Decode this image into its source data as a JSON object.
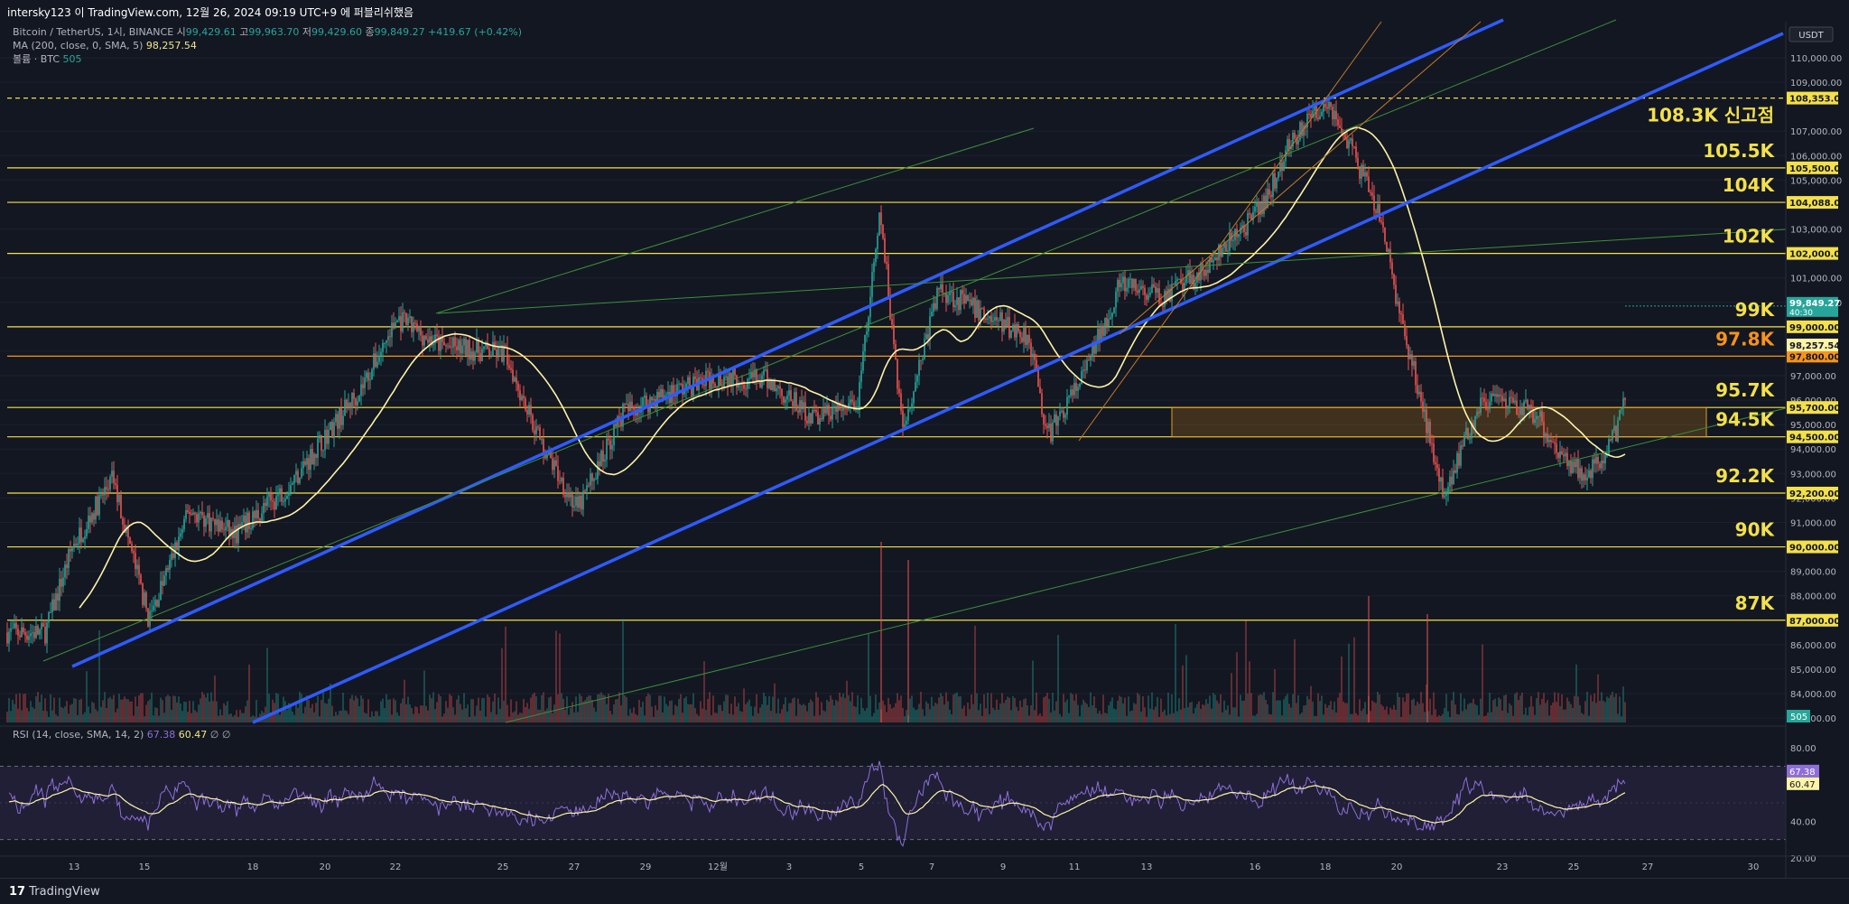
{
  "header": {
    "text": "intersky123 이 TradingView.com, 12월 26, 2024 09:19 UTC+9 에 퍼블리쉬했음"
  },
  "legend": {
    "symbol": "Bitcoin / TetherUS, 1시, BINANCE",
    "o_label": "시",
    "o_val": "99,429.61",
    "h_label": "고",
    "h_val": "99,963.70",
    "l_label": "저",
    "l_val": "99,429.60",
    "c_label": "종",
    "c_val": "99,849.27",
    "chg": "+419.67 (+0.42%)",
    "ma_label": "MA (200, close, 0, SMA, 5)",
    "ma_val": "98,257.54",
    "vol_label": "볼륨 · BTC",
    "vol_val": "505"
  },
  "rsi_legend": {
    "label": "RSI (14, close, SMA, 14, 2)",
    "rsi_val": "67.38",
    "sma_val": "60.47",
    "tail": "∅ ∅"
  },
  "brand": {
    "text": "TradingView"
  },
  "colors": {
    "up": "#26a69a",
    "down": "#ef5350",
    "level": "#f3e04a",
    "level_orange": "#f7931a",
    "channel": "#2f5bff",
    "ma": "#fff3a8",
    "rsi": "#8e6fd8"
  },
  "chart_data": {
    "type": "candlestick",
    "symbol": "Bitcoin / TetherUS",
    "timeframe": "1시",
    "currency": "USDT",
    "y_range": [
      82600,
      112000
    ],
    "x_tick_labels": [
      "13",
      "15",
      "18",
      "20",
      "22",
      "25",
      "27",
      "29",
      "12월",
      "3",
      "5",
      "7",
      "9",
      "11",
      "13",
      "16",
      "18",
      "20",
      "23",
      "25",
      "27",
      "30"
    ],
    "y_tick_labels": [
      "110,000.00",
      "109,000.00",
      "107,000.00",
      "106,000.00",
      "105,000.00",
      "103,000.00",
      "101,000.00",
      "100,000.00",
      "98,000.00",
      "97,000.00",
      "96,000.00",
      "95,000.00",
      "94,000.00",
      "93,000.00",
      "92,000.00",
      "91,000.00",
      "89,000.00",
      "88,000.00",
      "86,000.00",
      "85,000.00",
      "84,000.00",
      "83,000.00"
    ],
    "y_tick_values": [
      110000,
      109000,
      107000,
      106000,
      105000,
      103000,
      101000,
      100000,
      98000,
      97000,
      96000,
      95000,
      94000,
      93000,
      92000,
      91000,
      89000,
      88000,
      86000,
      85000,
      84000,
      83000
    ],
    "price_levels": [
      {
        "label": "108.3K 신고점",
        "price": 108353,
        "tag": "108,353.00",
        "dashed": true,
        "color": "#f3e04a"
      },
      {
        "label": "105.5K",
        "price": 105500,
        "tag": "105,500.00",
        "color": "#f3e04a"
      },
      {
        "label": "104K",
        "price": 104088,
        "tag": "104,088.00",
        "color": "#f3e04a"
      },
      {
        "label": "102K",
        "price": 102000,
        "tag": "102,000.00",
        "color": "#f3e04a"
      },
      {
        "label": "99K",
        "price": 99000,
        "tag": "99,000.00",
        "color": "#f3e04a"
      },
      {
        "label": "97.8K",
        "price": 97800,
        "tag": "97,800.00",
        "color": "#f7931a"
      },
      {
        "label": "95.7K",
        "price": 95700,
        "tag": "95,700.00",
        "color": "#f3e04a"
      },
      {
        "label": "94.5K",
        "price": 94500,
        "tag": "94,500.00",
        "color": "#f3e04a"
      },
      {
        "label": "92.2K",
        "price": 92200,
        "tag": "92,200.00",
        "color": "#f3e04a"
      },
      {
        "label": "90K",
        "price": 90000,
        "tag": "90,000.00",
        "color": "#f3e04a"
      },
      {
        "label": "87K",
        "price": 87000,
        "tag": "87,000.00",
        "color": "#f3e04a"
      }
    ],
    "current_price": {
      "tag": "99,849.27",
      "sub": "40:30",
      "price": 99849
    },
    "ma_tag": {
      "tag": "98,257.54",
      "price": 98257
    },
    "volume_tag": "505",
    "rsi": {
      "y_range": [
        14,
        88
      ],
      "y_tick_labels": [
        "80.00",
        "60.00",
        "40.00",
        "20.00"
      ],
      "y_tick_values": [
        80,
        60,
        40,
        20
      ],
      "bands": [
        70,
        30
      ],
      "rsi_tag": "67.38",
      "rsi_value": 67.38,
      "sma_tag": "60.47",
      "sma_value": 60.47
    },
    "series": [
      {
        "name": "MA (200, close, 0, SMA, 5)"
      },
      {
        "name": "볼륨 · BTC"
      },
      {
        "name": "RSI (14, close, SMA, 14, 2)"
      }
    ]
  }
}
